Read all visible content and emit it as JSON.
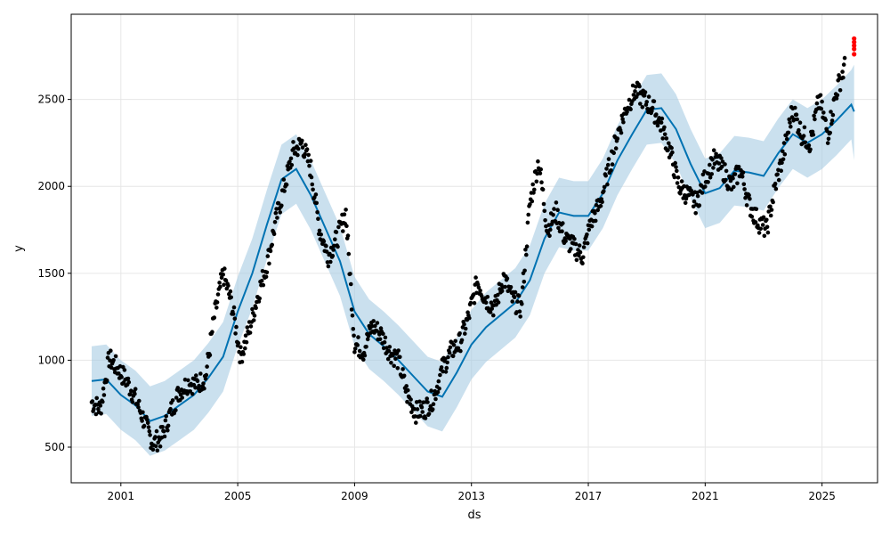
{
  "chart_data": {
    "type": "scatter",
    "title": "",
    "xlabel": "ds",
    "ylabel": "y",
    "xlim": [
      1999.3,
      2026.9
    ],
    "ylim": [
      295,
      2990
    ],
    "x_ticks": [
      {
        "value": 2001,
        "label": "2001"
      },
      {
        "value": 2005,
        "label": "2005"
      },
      {
        "value": 2009,
        "label": "2009"
      },
      {
        "value": 2013,
        "label": "2013"
      },
      {
        "value": 2017,
        "label": "2017"
      },
      {
        "value": 2021,
        "label": "2021"
      },
      {
        "value": 2025,
        "label": "2025"
      }
    ],
    "y_ticks": [
      {
        "value": 500,
        "label": "500"
      },
      {
        "value": 1000,
        "label": "1000"
      },
      {
        "value": 1500,
        "label": "1500"
      },
      {
        "value": 2000,
        "label": "2000"
      },
      {
        "value": 2500,
        "label": "2500"
      }
    ],
    "grid": true,
    "colors": {
      "observed": "#000000",
      "forecast_line": "#0072B2",
      "uncertainty_band": "#A6CBE3",
      "highlight": "#FF0000"
    },
    "series": [
      {
        "kind": "forecast_line",
        "x": [
          2000.0,
          2000.5,
          2001.0,
          2001.5,
          2002.0,
          2002.5,
          2003.0,
          2003.5,
          2004.0,
          2004.5,
          2005.0,
          2005.5,
          2006.0,
          2006.5,
          2007.0,
          2007.5,
          2008.0,
          2008.5,
          2009.0,
          2009.5,
          2010.0,
          2010.5,
          2011.0,
          2011.5,
          2012.0,
          2012.5,
          2013.0,
          2013.5,
          2014.0,
          2014.5,
          2015.0,
          2015.5,
          2016.0,
          2016.5,
          2017.0,
          2017.5,
          2018.0,
          2018.5,
          2019.0,
          2019.5,
          2020.0,
          2020.5,
          2021.0,
          2021.5,
          2022.0,
          2022.5,
          2023.0,
          2023.5,
          2024.0,
          2024.5,
          2025.0,
          2025.5,
          2026.0,
          2026.1
        ],
        "y": [
          880,
          890,
          800,
          740,
          650,
          680,
          740,
          800,
          900,
          1020,
          1280,
          1500,
          1780,
          2040,
          2100,
          1950,
          1760,
          1570,
          1280,
          1150,
          1080,
          1000,
          910,
          820,
          790,
          930,
          1090,
          1190,
          1260,
          1330,
          1460,
          1700,
          1850,
          1830,
          1830,
          1960,
          2150,
          2300,
          2440,
          2450,
          2330,
          2130,
          1960,
          1990,
          2090,
          2080,
          2060,
          2190,
          2300,
          2250,
          2300,
          2380,
          2470,
          2430
        ]
      },
      {
        "kind": "uncertainty_band",
        "x": [
          2000.0,
          2000.5,
          2001.0,
          2001.5,
          2002.0,
          2002.5,
          2003.0,
          2003.5,
          2004.0,
          2004.5,
          2005.0,
          2005.5,
          2006.0,
          2006.5,
          2007.0,
          2007.5,
          2008.0,
          2008.5,
          2009.0,
          2009.5,
          2010.0,
          2010.5,
          2011.0,
          2011.5,
          2012.0,
          2012.5,
          2013.0,
          2013.5,
          2014.0,
          2014.5,
          2015.0,
          2015.5,
          2016.0,
          2016.5,
          2017.0,
          2017.5,
          2018.0,
          2018.5,
          2019.0,
          2019.5,
          2020.0,
          2020.5,
          2021.0,
          2021.5,
          2022.0,
          2022.5,
          2023.0,
          2023.5,
          2024.0,
          2024.5,
          2025.0,
          2025.5,
          2026.0,
          2026.1
        ],
        "lower": [
          680,
          690,
          600,
          540,
          450,
          480,
          540,
          600,
          700,
          820,
          1080,
          1300,
          1580,
          1840,
          1900,
          1750,
          1560,
          1370,
          1080,
          950,
          880,
          800,
          710,
          620,
          590,
          730,
          890,
          990,
          1060,
          1130,
          1260,
          1500,
          1650,
          1630,
          1630,
          1760,
          1950,
          2100,
          2240,
          2250,
          2130,
          1930,
          1760,
          1790,
          1890,
          1880,
          1860,
          1990,
          2100,
          2050,
          2100,
          2180,
          2270,
          2150
        ],
        "upper": [
          1080,
          1090,
          1000,
          940,
          850,
          880,
          940,
          1000,
          1100,
          1220,
          1480,
          1700,
          1980,
          2240,
          2300,
          2150,
          1960,
          1770,
          1480,
          1350,
          1280,
          1200,
          1110,
          1020,
          990,
          1130,
          1290,
          1390,
          1460,
          1530,
          1660,
          1900,
          2050,
          2030,
          2030,
          2160,
          2350,
          2500,
          2640,
          2650,
          2530,
          2330,
          2160,
          2190,
          2290,
          2280,
          2260,
          2390,
          2500,
          2450,
          2500,
          2580,
          2670,
          2700
        ]
      },
      {
        "kind": "observed",
        "x": [
          2000.0,
          2000.3,
          2000.6,
          2000.9,
          2001.2,
          2001.5,
          2001.8,
          2002.1,
          2002.4,
          2002.7,
          2003.0,
          2003.3,
          2003.6,
          2003.9,
          2004.2,
          2004.5,
          2004.8,
          2005.1,
          2005.4,
          2005.7,
          2006.0,
          2006.3,
          2006.6,
          2006.9,
          2007.2,
          2007.5,
          2007.8,
          2008.1,
          2008.4,
          2008.7,
          2009.0,
          2009.3,
          2009.6,
          2009.9,
          2010.2,
          2010.5,
          2010.8,
          2011.1,
          2011.4,
          2011.7,
          2012.0,
          2012.3,
          2012.6,
          2012.9,
          2013.2,
          2013.5,
          2013.8,
          2014.1,
          2014.4,
          2014.7,
          2015.0,
          2015.3,
          2015.6,
          2015.9,
          2016.2,
          2016.5,
          2016.8,
          2017.1,
          2017.4,
          2017.7,
          2018.0,
          2018.3,
          2018.6,
          2018.9,
          2019.2,
          2019.5,
          2019.8,
          2020.1,
          2020.4,
          2020.7,
          2021.0,
          2021.3,
          2021.6,
          2021.9,
          2022.2,
          2022.5,
          2022.8,
          2023.1,
          2023.4,
          2023.7,
          2024.0,
          2024.3,
          2024.6,
          2024.9,
          2025.2,
          2025.5,
          2025.8
        ],
        "y": [
          760,
          720,
          1010,
          950,
          880,
          780,
          650,
          520,
          560,
          700,
          820,
          870,
          860,
          900,
          1250,
          1500,
          1320,
          1020,
          1180,
          1380,
          1550,
          1800,
          2000,
          2200,
          2250,
          2100,
          1750,
          1600,
          1700,
          1850,
          1100,
          1050,
          1200,
          1150,
          1050,
          1000,
          800,
          700,
          720,
          780,
          950,
          1050,
          1100,
          1250,
          1450,
          1350,
          1300,
          1480,
          1350,
          1300,
          1900,
          2150,
          1750,
          1850,
          1700,
          1650,
          1600,
          1800,
          1900,
          2100,
          2300,
          2450,
          2550,
          2500,
          2450,
          2350,
          2200,
          2000,
          1950,
          1900,
          2050,
          2150,
          2100,
          2000,
          2100,
          1900,
          1800,
          1750,
          2000,
          2200,
          2450,
          2300,
          2250,
          2500,
          2300,
          2550,
          2700
        ],
        "jitter": 60
      },
      {
        "kind": "highlight",
        "x": [
          2026.1,
          2026.1,
          2026.1,
          2026.1,
          2026.1
        ],
        "y": [
          2760,
          2790,
          2810,
          2830,
          2850
        ]
      }
    ]
  }
}
